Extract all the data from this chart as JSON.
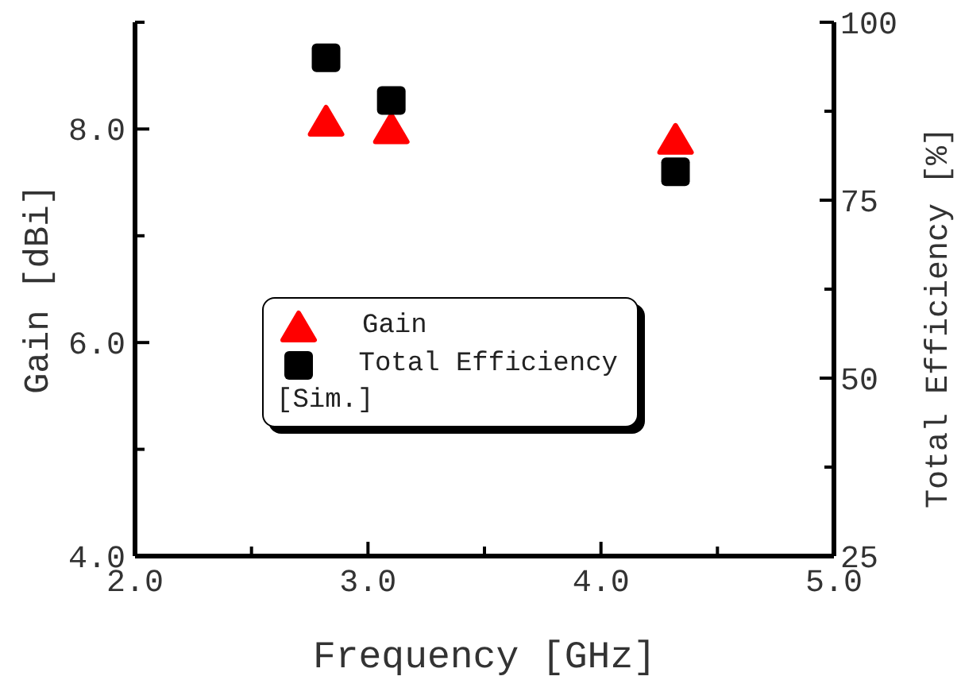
{
  "chart_data": {
    "type": "scatter",
    "xlabel": "Frequency [GHz]",
    "ylabel": "Gain [dBi]",
    "y2label": "Total Efficiency [%]",
    "xlim": [
      2,
      5
    ],
    "xticks": [
      {
        "value": 2,
        "label": "2.0"
      },
      {
        "value": 2.5,
        "label": null
      },
      {
        "value": 3,
        "label": "3.0"
      },
      {
        "value": 3.5,
        "label": null
      },
      {
        "value": 4,
        "label": "4.0"
      },
      {
        "value": 4.5,
        "label": null
      },
      {
        "value": 5,
        "label": "5.0"
      }
    ],
    "ylim": [
      4,
      9
    ],
    "yticks": [
      {
        "value": 4,
        "label": "4.0"
      },
      {
        "value": 5,
        "label": null
      },
      {
        "value": 6,
        "label": "6.0"
      },
      {
        "value": 7,
        "label": null
      },
      {
        "value": 8,
        "label": "8.0"
      },
      {
        "value": 9,
        "label": null
      }
    ],
    "y2lim": [
      25,
      100
    ],
    "y2ticks": [
      25,
      {
        "value": 37.5,
        "label": null
      },
      50,
      {
        "value": 62.5,
        "label": null
      },
      75,
      {
        "value": 87.5,
        "label": null
      },
      100
    ],
    "series": [
      {
        "name": "Gain",
        "color": "#ff0000",
        "marker": "triangle",
        "x": [
          2.82,
          3.1,
          4.32
        ],
        "values": [
          8.07,
          8.0,
          7.9
        ]
      },
      {
        "name": "Total Efficiency",
        "color": "#000000",
        "marker": "square",
        "axis": "y2",
        "x": [
          2.82,
          3.1,
          4.32
        ],
        "values": [
          95,
          89,
          79
        ]
      }
    ],
    "legend": "center left",
    "annotations": [
      "[Sim.]"
    ]
  }
}
